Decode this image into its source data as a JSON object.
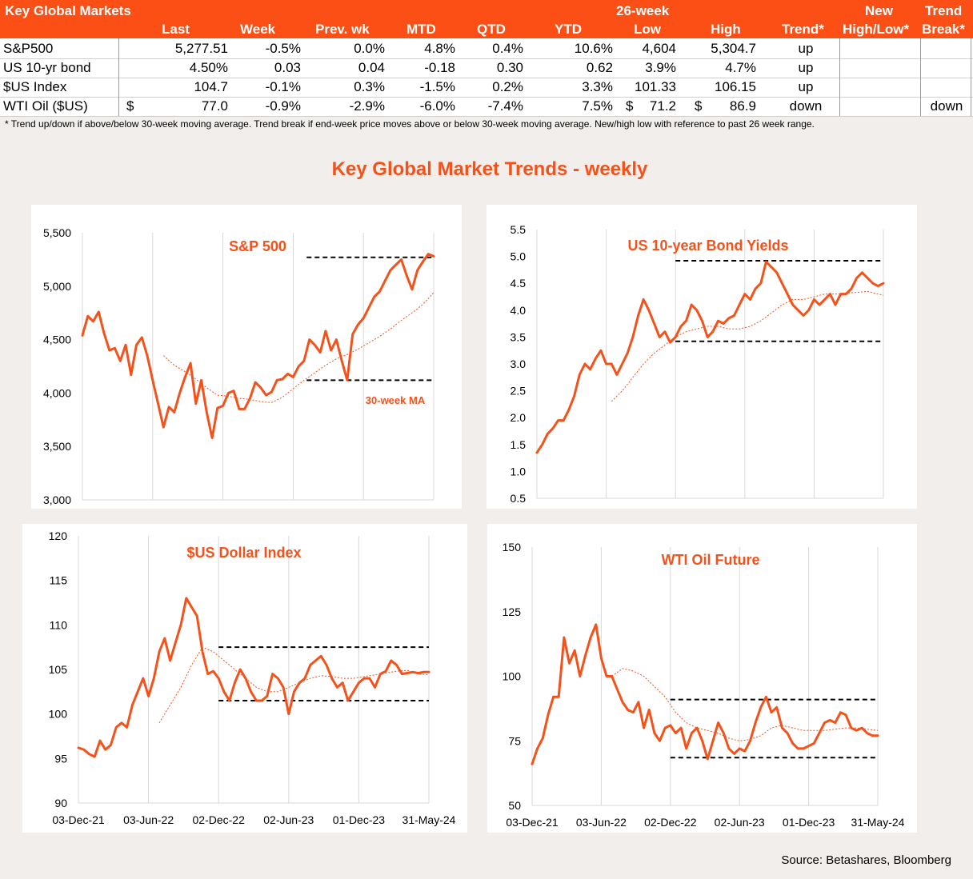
{
  "table": {
    "title": "Key Global Markets",
    "group_header": "26-week",
    "columns": [
      "Last",
      "Week",
      "Prev. wk",
      "MTD",
      "QTD",
      "YTD",
      "Low",
      "High",
      "Trend*",
      "New High/Low*",
      "Trend Break*"
    ],
    "new_top": "New",
    "new_bottom": "High/Low*",
    "break_top": "Trend",
    "break_bottom": "Break*",
    "rows": [
      {
        "name": "S&P500",
        "last_prefix": "",
        "last": "5,277.51",
        "week": "-0.5%",
        "prev_wk": "0.0%",
        "mtd": "4.8%",
        "qtd": "0.4%",
        "ytd": "10.6%",
        "low_prefix": "",
        "low": "4,604",
        "high_prefix": "",
        "high": "5,304.7",
        "trend": "up",
        "new_high_low": "",
        "trend_break": ""
      },
      {
        "name": "US 10-yr bond",
        "last_prefix": "",
        "last": "4.50%",
        "week": "0.03",
        "prev_wk": "0.04",
        "mtd": "-0.18",
        "qtd": "0.30",
        "ytd": "0.62",
        "low_prefix": "",
        "low": "3.9%",
        "high_prefix": "",
        "high": "4.7%",
        "trend": "up",
        "new_high_low": "",
        "trend_break": ""
      },
      {
        "name": "$US Index",
        "last_prefix": "",
        "last": "104.7",
        "week": "-0.1%",
        "prev_wk": "0.3%",
        "mtd": "-1.5%",
        "qtd": "0.2%",
        "ytd": "3.3%",
        "low_prefix": "",
        "low": "101.33",
        "high_prefix": "",
        "high": "106.15",
        "trend": "up",
        "new_high_low": "",
        "trend_break": ""
      },
      {
        "name": "WTI Oil ($US)",
        "last_prefix": "$",
        "last": "77.0",
        "week": "-0.9%",
        "prev_wk": "-2.9%",
        "mtd": "-6.0%",
        "qtd": "-7.4%",
        "ytd": "7.5%",
        "low_prefix": "$",
        "low": "71.2",
        "high_prefix": "$",
        "high": "86.9",
        "trend": "down",
        "new_high_low": "",
        "trend_break": "down"
      }
    ],
    "footnote": "*  Trend up/down if above/below 30-week moving average. Trend break if end-week price moves above or below 30-week moving average.  New/high low with reference to past 26 week range."
  },
  "main_title": "Key Global Market Trends - weekly",
  "source": "Source: Betashares, Bloomberg",
  "colors": {
    "accent": "#fc4f16",
    "line": "#f5511a",
    "dashed_range": "#000000"
  },
  "chart_data": [
    {
      "type": "line",
      "title": "S&P 500",
      "annotation": "30-week MA",
      "ylim": [
        3000,
        5500
      ],
      "yticks": [
        "3,000",
        "3,500",
        "4,000",
        "4,500",
        "5,000",
        "5,500"
      ],
      "ytick_values": [
        3000,
        3500,
        4000,
        4500,
        5000,
        5500
      ],
      "xticks": [
        "03-Dec-21",
        "03-Jun-22",
        "02-Dec-22",
        "02-Jun-23",
        "01-Dec-23",
        "31-May-24"
      ],
      "xlim": [
        0,
        130
      ],
      "show_xticks": false,
      "range_lines": [
        {
          "value": 5270,
          "x_from": 83,
          "x_to": 130
        },
        {
          "value": 4120,
          "x_from": 83,
          "x_to": 130
        }
      ],
      "series": [
        {
          "name": "",
          "style": "solid",
          "x": [
            0,
            2,
            4,
            6,
            8,
            10,
            12,
            14,
            16,
            18,
            20,
            22,
            24,
            26,
            28,
            30,
            32,
            34,
            36,
            38,
            40,
            42,
            44,
            46,
            48,
            50,
            52,
            54,
            56,
            58,
            60,
            62,
            64,
            66,
            68,
            70,
            72,
            74,
            76,
            78,
            80,
            82,
            84,
            86,
            88,
            90,
            92,
            94,
            96,
            98,
            100,
            102,
            104,
            106,
            108,
            110,
            112,
            114,
            116,
            118,
            120,
            122,
            124,
            126,
            128,
            130
          ],
          "values": [
            4540,
            4720,
            4670,
            4760,
            4560,
            4400,
            4420,
            4300,
            4450,
            4170,
            4450,
            4520,
            4350,
            4120,
            3900,
            3680,
            3870,
            3820,
            4000,
            4150,
            4280,
            3900,
            4120,
            3820,
            3580,
            3860,
            3880,
            4000,
            4020,
            3850,
            3850,
            3950,
            4100,
            4050,
            3980,
            4010,
            4120,
            4130,
            4180,
            4150,
            4250,
            4300,
            4500,
            4450,
            4380,
            4580,
            4400,
            4500,
            4300,
            4120,
            4550,
            4640,
            4700,
            4800,
            4900,
            4950,
            5050,
            5150,
            5200,
            5250,
            5100,
            4970,
            5150,
            5230,
            5300,
            5280
          ]
        },
        {
          "name": "",
          "style": "ma",
          "x": [
            30,
            34,
            38,
            42,
            46,
            50,
            54,
            58,
            62,
            66,
            70,
            74,
            78,
            82,
            86,
            90,
            94,
            98,
            102,
            106,
            110,
            114,
            118,
            122,
            126,
            130
          ],
          "values": [
            4350,
            4260,
            4200,
            4130,
            4050,
            3980,
            3970,
            3950,
            3940,
            3920,
            3910,
            3960,
            4040,
            4120,
            4190,
            4260,
            4320,
            4360,
            4410,
            4470,
            4530,
            4600,
            4680,
            4750,
            4830,
            4940
          ]
        }
      ]
    },
    {
      "type": "line",
      "title": "US 10-year Bond Yields",
      "ylim": [
        0.5,
        5.5
      ],
      "yticks": [
        "0.5",
        "1.0",
        "1.5",
        "2.0",
        "2.5",
        "3.0",
        "3.5",
        "4.0",
        "4.5",
        "5.0",
        "5.5"
      ],
      "ytick_values": [
        0.5,
        1.0,
        1.5,
        2.0,
        2.5,
        3.0,
        3.5,
        4.0,
        4.5,
        5.0,
        5.5
      ],
      "xticks": [
        "03-Dec-21",
        "03-Jun-22",
        "02-Dec-22",
        "02-Jun-23",
        "01-Dec-23",
        "31-May-24"
      ],
      "xlim": [
        0,
        130
      ],
      "show_xticks": false,
      "range_lines": [
        {
          "value": 4.92,
          "x_from": 52,
          "x_to": 130
        },
        {
          "value": 3.42,
          "x_from": 52,
          "x_to": 130
        }
      ],
      "series": [
        {
          "name": "",
          "style": "solid",
          "x": [
            0,
            2,
            4,
            6,
            8,
            10,
            12,
            14,
            16,
            18,
            20,
            22,
            24,
            26,
            28,
            30,
            32,
            34,
            36,
            38,
            40,
            42,
            44,
            46,
            48,
            50,
            52,
            54,
            56,
            58,
            60,
            62,
            64,
            66,
            68,
            70,
            72,
            74,
            76,
            78,
            80,
            82,
            84,
            86,
            88,
            90,
            92,
            94,
            96,
            98,
            100,
            102,
            104,
            106,
            108,
            110,
            112,
            114,
            116,
            118,
            120,
            122,
            124,
            126,
            128,
            130
          ],
          "values": [
            1.35,
            1.5,
            1.7,
            1.8,
            1.95,
            1.95,
            2.15,
            2.4,
            2.8,
            3.0,
            2.9,
            3.1,
            3.25,
            3.0,
            3.0,
            2.8,
            3.0,
            3.2,
            3.5,
            3.9,
            4.2,
            4.0,
            3.75,
            3.5,
            3.6,
            3.4,
            3.5,
            3.7,
            3.8,
            4.1,
            4.0,
            3.8,
            3.5,
            3.6,
            3.8,
            3.75,
            3.85,
            3.9,
            4.1,
            4.3,
            4.2,
            4.4,
            4.5,
            4.9,
            4.8,
            4.7,
            4.5,
            4.3,
            4.1,
            4.0,
            3.9,
            4.0,
            4.2,
            4.1,
            4.2,
            4.3,
            4.1,
            4.3,
            4.3,
            4.4,
            4.6,
            4.7,
            4.6,
            4.5,
            4.45,
            4.5
          ]
        },
        {
          "name": "",
          "style": "ma",
          "x": [
            28,
            32,
            36,
            40,
            44,
            48,
            52,
            56,
            60,
            64,
            68,
            72,
            76,
            80,
            84,
            88,
            92,
            96,
            100,
            104,
            108,
            112,
            116,
            120,
            124,
            128,
            130
          ],
          "values": [
            2.3,
            2.5,
            2.75,
            3.0,
            3.2,
            3.35,
            3.5,
            3.6,
            3.65,
            3.7,
            3.7,
            3.65,
            3.65,
            3.7,
            3.8,
            3.95,
            4.1,
            4.2,
            4.2,
            4.25,
            4.3,
            4.3,
            4.32,
            4.33,
            4.35,
            4.3,
            4.28
          ]
        }
      ]
    },
    {
      "type": "line",
      "title": "$US Dollar Index",
      "ylim": [
        90,
        120
      ],
      "yticks": [
        "90",
        "95",
        "100",
        "105",
        "110",
        "115",
        "120"
      ],
      "ytick_values": [
        90,
        95,
        100,
        105,
        110,
        115,
        120
      ],
      "xticks": [
        "03-Dec-21",
        "03-Jun-22",
        "02-Dec-22",
        "02-Jun-23",
        "01-Dec-23",
        "31-May-24"
      ],
      "xlim": [
        0,
        130
      ],
      "show_xticks": true,
      "range_lines": [
        {
          "value": 107.5,
          "x_from": 52,
          "x_to": 130
        },
        {
          "value": 101.5,
          "x_from": 52,
          "x_to": 130
        }
      ],
      "series": [
        {
          "name": "",
          "style": "solid",
          "x": [
            0,
            2,
            4,
            6,
            8,
            10,
            12,
            14,
            16,
            18,
            20,
            22,
            24,
            26,
            28,
            30,
            32,
            34,
            36,
            38,
            40,
            42,
            44,
            46,
            48,
            50,
            52,
            54,
            56,
            58,
            60,
            62,
            64,
            66,
            68,
            70,
            72,
            74,
            76,
            78,
            80,
            82,
            84,
            86,
            88,
            90,
            92,
            94,
            96,
            98,
            100,
            102,
            104,
            106,
            108,
            110,
            112,
            114,
            116,
            118,
            120,
            122,
            124,
            126,
            128,
            130
          ],
          "values": [
            96.2,
            96.0,
            95.5,
            95.2,
            97.0,
            96.0,
            96.5,
            98.5,
            99.0,
            98.5,
            101.0,
            102.5,
            104.0,
            102.0,
            104.0,
            107.0,
            108.5,
            106.0,
            108.0,
            110.0,
            113.0,
            112.0,
            111.0,
            107.0,
            104.5,
            104.8,
            104.0,
            102.5,
            101.5,
            103.5,
            105.0,
            104.0,
            102.5,
            101.5,
            101.5,
            102.0,
            104.5,
            104.0,
            103.0,
            100.0,
            102.5,
            103.5,
            104.0,
            105.5,
            106.0,
            106.5,
            105.5,
            104.0,
            103.0,
            103.5,
            101.5,
            102.5,
            103.5,
            104.0,
            104.0,
            103.0,
            104.5,
            104.8,
            106.0,
            105.5,
            104.5,
            104.6,
            104.7,
            104.6,
            104.7,
            104.7
          ]
        },
        {
          "name": "",
          "style": "ma",
          "x": [
            30,
            34,
            38,
            42,
            46,
            50,
            54,
            58,
            62,
            66,
            70,
            74,
            78,
            82,
            86,
            90,
            94,
            98,
            102,
            106,
            110,
            114,
            118,
            122,
            126,
            130
          ],
          "values": [
            99.0,
            101.0,
            103.0,
            105.5,
            107.5,
            107.0,
            106.0,
            105.0,
            104.0,
            103.0,
            102.5,
            102.5,
            103.0,
            103.5,
            104.0,
            104.3,
            104.2,
            104.0,
            104.0,
            104.2,
            104.4,
            104.6,
            104.8,
            104.9,
            104.5,
            104.4
          ]
        }
      ]
    },
    {
      "type": "line",
      "title": "WTI Oil Future",
      "ylim": [
        50,
        150
      ],
      "yticks": [
        "50",
        "75",
        "100",
        "125",
        "150"
      ],
      "ytick_values": [
        50,
        75,
        100,
        125,
        150
      ],
      "xticks": [
        "03-Dec-21",
        "03-Jun-22",
        "02-Dec-22",
        "02-Jun-23",
        "01-Dec-23",
        "31-May-24"
      ],
      "xlim": [
        0,
        130
      ],
      "show_xticks": true,
      "range_lines": [
        {
          "value": 91,
          "x_from": 52,
          "x_to": 130
        },
        {
          "value": 68.5,
          "x_from": 52,
          "x_to": 130
        }
      ],
      "series": [
        {
          "name": "",
          "style": "solid",
          "x": [
            0,
            2,
            4,
            6,
            8,
            10,
            12,
            14,
            16,
            18,
            20,
            22,
            24,
            26,
            28,
            30,
            32,
            34,
            36,
            38,
            40,
            42,
            44,
            46,
            48,
            50,
            52,
            54,
            56,
            58,
            60,
            62,
            64,
            66,
            68,
            70,
            72,
            74,
            76,
            78,
            80,
            82,
            84,
            86,
            88,
            90,
            92,
            94,
            96,
            98,
            100,
            102,
            104,
            106,
            108,
            110,
            112,
            114,
            116,
            118,
            120,
            122,
            124,
            126,
            128,
            130
          ],
          "values": [
            66,
            72,
            76,
            85,
            92,
            92,
            115,
            105,
            110,
            100,
            108,
            115,
            120,
            107,
            100,
            100,
            95,
            90,
            87,
            86,
            90,
            80,
            87,
            78,
            75,
            80,
            81,
            78,
            80,
            72,
            78,
            80,
            75,
            68,
            75,
            82,
            78,
            72,
            70,
            72,
            71,
            75,
            82,
            88,
            92,
            86,
            88,
            80,
            78,
            74,
            72,
            72,
            73,
            74,
            78,
            82,
            83,
            82,
            86,
            85,
            80,
            79,
            80,
            78,
            77,
            77
          ]
        },
        {
          "name": "",
          "style": "ma",
          "x": [
            30,
            34,
            38,
            42,
            46,
            50,
            54,
            58,
            62,
            66,
            70,
            74,
            78,
            82,
            86,
            90,
            94,
            98,
            102,
            106,
            110,
            114,
            118,
            122,
            126,
            130
          ],
          "values": [
            100,
            103,
            102,
            100,
            96,
            92,
            86,
            82,
            80,
            79,
            78,
            76,
            75,
            75.5,
            77,
            80,
            81,
            80,
            79,
            79,
            79,
            79.5,
            80,
            80,
            79.5,
            79
          ]
        }
      ]
    }
  ]
}
